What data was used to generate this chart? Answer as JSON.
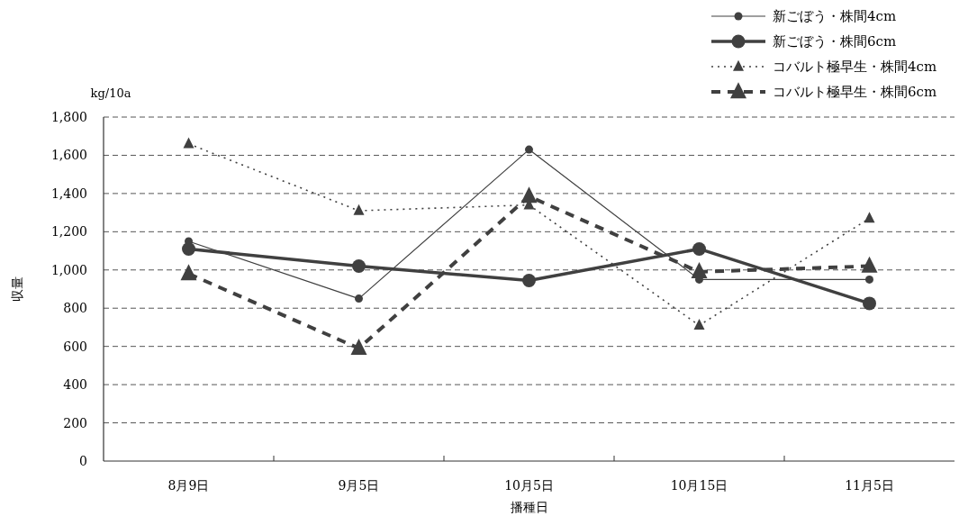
{
  "chart_data": {
    "type": "line",
    "xlabel": "播種日",
    "ylabel": "収量",
    "annotations": [
      "kg/10a"
    ],
    "categories": [
      "8月9日",
      "9月5日",
      "10月5日",
      "10月15日",
      "11月5日"
    ],
    "series": [
      {
        "name": "新ごぼう・株間4cm",
        "color": "#404040",
        "marker": "circle",
        "line_style": "solid",
        "values": [
          1150,
          850,
          1630,
          950,
          950
        ]
      },
      {
        "name": "新ごぼう・株間6cm",
        "color": "#404040",
        "marker": "circle",
        "line_style": "solid",
        "values": [
          1110,
          1020,
          945,
          1110,
          825
        ]
      },
      {
        "name": "コバルト極早生・株間4cm",
        "color": "#404040",
        "marker": "triangle",
        "line_style": "dotted",
        "values": [
          1660,
          1310,
          1340,
          710,
          1270
        ]
      },
      {
        "name": "コバルト極早生・株間6cm",
        "color": "#404040",
        "marker": "triangle",
        "line_style": "dashed",
        "values": [
          980,
          590,
          1385,
          990,
          1020
        ]
      }
    ],
    "ylim": [
      0,
      1800
    ],
    "yticks": [
      0,
      200,
      400,
      600,
      800,
      {
        "value": 1000,
        "label": "1,000"
      },
      {
        "value": 1200,
        "label": "1,200"
      },
      {
        "value": 1400,
        "label": "1,400"
      },
      {
        "value": 1600,
        "label": "1,600"
      },
      {
        "value": 1800,
        "label": "1,800"
      }
    ],
    "grid": "y",
    "legend": "top right"
  }
}
